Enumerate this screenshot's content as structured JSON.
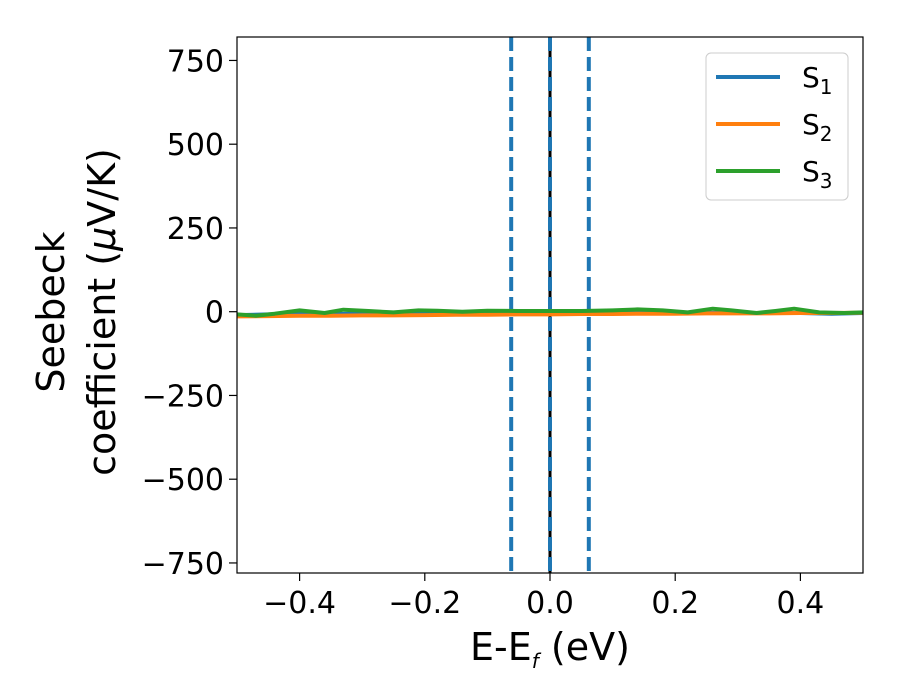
{
  "chart_data": {
    "type": "line",
    "xlabel": {
      "main": "E-E",
      "sub": "f",
      "unit": "(eV)"
    },
    "ylabel": {
      "line1": "Seebeck",
      "line2_prefix": "coefficient  (",
      "mu": "μ",
      "line2_suffix": "V/K)"
    },
    "xlim": [
      -0.5,
      0.5
    ],
    "ylim": [
      -780,
      820
    ],
    "xticks": [
      -0.4,
      -0.2,
      0.0,
      0.2,
      0.4
    ],
    "xtick_labels": [
      "−0.4",
      "−0.2",
      "0.0",
      "0.2",
      "0.4"
    ],
    "yticks": [
      750,
      500,
      250,
      0,
      -250,
      -500,
      -750
    ],
    "ytick_labels": [
      "750",
      "500",
      "250",
      "0",
      "−250",
      "−500",
      "−750"
    ],
    "grid": false,
    "legend_position": "top-right",
    "vlines": [
      {
        "x": 0.0,
        "color": "#000000",
        "style": "solid"
      },
      {
        "x": -0.062,
        "color": "#1f77b4",
        "style": "dashed"
      },
      {
        "x": 0.0,
        "color": "#1f77b4",
        "style": "dashed"
      },
      {
        "x": 0.062,
        "color": "#1f77b4",
        "style": "dashed"
      }
    ],
    "series": [
      {
        "name": "S",
        "sub": "1",
        "color": "#1f77b4",
        "x": [
          -0.5,
          -0.45,
          -0.4,
          -0.35,
          -0.3,
          -0.25,
          -0.2,
          -0.15,
          -0.1,
          -0.05,
          0.0,
          0.05,
          0.1,
          0.15,
          0.2,
          0.25,
          0.3,
          0.35,
          0.4,
          0.45,
          0.5
        ],
        "y": [
          -10,
          -8,
          -6,
          -7,
          -6,
          -7,
          -6,
          -6,
          -5,
          -4,
          -4,
          -4,
          -4,
          -3,
          -4,
          -3,
          -4,
          -4,
          -4,
          -6,
          -4
        ]
      },
      {
        "name": "S",
        "sub": "2",
        "color": "#ff7f0e",
        "x": [
          -0.5,
          -0.45,
          -0.4,
          -0.35,
          -0.3,
          -0.25,
          -0.2,
          -0.15,
          -0.1,
          -0.05,
          0.0,
          0.05,
          0.1,
          0.15,
          0.2,
          0.25,
          0.3,
          0.35,
          0.4,
          0.45,
          0.5
        ],
        "y": [
          -14,
          -13,
          -12,
          -12,
          -11,
          -11,
          -10,
          -9,
          -9,
          -8,
          -8,
          -7,
          -7,
          -6,
          -6,
          -5,
          -5,
          -5,
          -4,
          -4,
          -3
        ]
      },
      {
        "name": "S",
        "sub": "3",
        "color": "#2ca02c",
        "x": [
          -0.5,
          -0.47,
          -0.44,
          -0.4,
          -0.36,
          -0.33,
          -0.29,
          -0.25,
          -0.21,
          -0.18,
          -0.14,
          -0.1,
          -0.05,
          0.0,
          0.05,
          0.1,
          0.14,
          0.18,
          0.22,
          0.26,
          0.29,
          0.33,
          0.36,
          0.39,
          0.43,
          0.47,
          0.5
        ],
        "y": [
          -8,
          -12,
          -6,
          4,
          -4,
          6,
          2,
          -2,
          4,
          3,
          0,
          3,
          2,
          2,
          2,
          4,
          7,
          4,
          -2,
          9,
          4,
          -4,
          2,
          9,
          -2,
          -4,
          -2
        ]
      }
    ]
  }
}
